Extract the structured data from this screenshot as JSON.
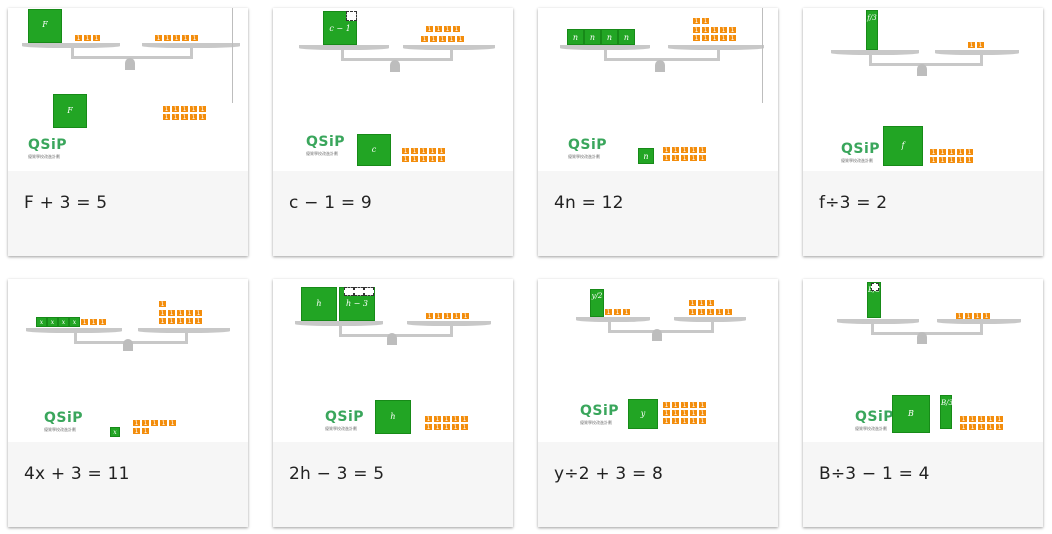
{
  "logo": "QSiP",
  "cards": [
    {
      "equation": "F + 3 = 5",
      "var": "F"
    },
    {
      "equation": "c − 1 = 9",
      "var": "c",
      "expr": "c − 1"
    },
    {
      "equation": "4n = 12",
      "var": "n"
    },
    {
      "equation": "f÷3 = 2",
      "var": "f",
      "expr": "f/3"
    },
    {
      "equation": "4x + 3 = 11",
      "var": "x"
    },
    {
      "equation": "2h − 3 = 5",
      "var": "h",
      "expr": "h − 3"
    },
    {
      "equation": "y÷2 + 3 = 8",
      "var": "y",
      "expr": "y/2"
    },
    {
      "equation": "B÷3 − 1 = 4",
      "var": "B",
      "expr": "B/3"
    }
  ],
  "colors": {
    "variable": "#22a524",
    "unit": "#f38d0c",
    "balance": "#c8c8c8"
  }
}
